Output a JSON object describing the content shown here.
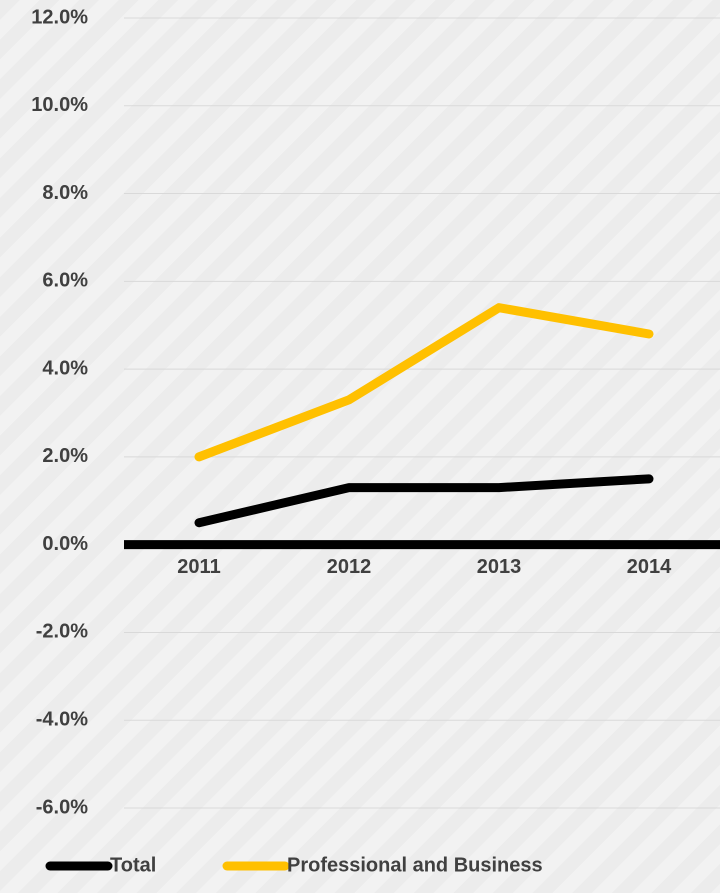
{
  "chart_data": {
    "type": "line",
    "categories": [
      "2011",
      "2012",
      "2013",
      "2014"
    ],
    "series": [
      {
        "name": "Total",
        "color": "#000000",
        "values": [
          0.5,
          1.3,
          1.3,
          1.5
        ]
      },
      {
        "name": "Professional and Business",
        "color": "#FFC000",
        "values": [
          2.0,
          3.3,
          5.4,
          4.8
        ]
      }
    ],
    "ylim": [
      -6,
      12
    ],
    "yticks": [
      {
        "value": -6,
        "label": "-6.0%"
      },
      {
        "value": -4,
        "label": "-4.0%"
      },
      {
        "value": -2,
        "label": "-2.0%"
      },
      {
        "value": 0,
        "label": "0.0%"
      },
      {
        "value": 2,
        "label": "2.0%"
      },
      {
        "value": 4,
        "label": "4.0%"
      },
      {
        "value": 6,
        "label": "6.0%"
      },
      {
        "value": 8,
        "label": "8.0%"
      },
      {
        "value": 10,
        "label": "10.0%"
      },
      {
        "value": 12,
        "label": "12.0%"
      }
    ],
    "grid": true,
    "legend": "bottom"
  }
}
